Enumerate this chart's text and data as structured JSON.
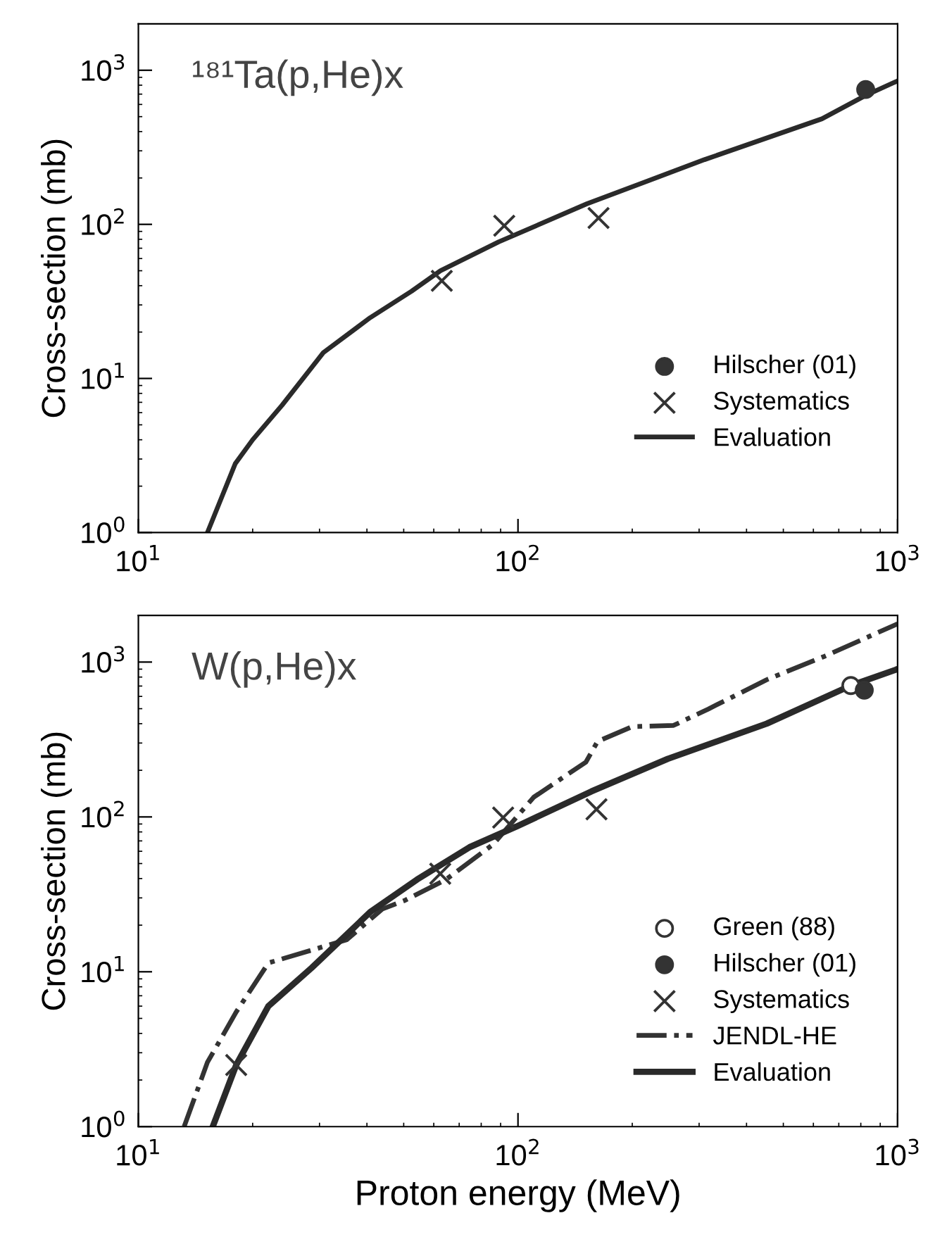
{
  "chart_data": [
    {
      "type": "line",
      "ylabel": "Cross-section (mb)",
      "annotations": [
        "¹⁸¹Ta(p,He)x"
      ],
      "log": "xy",
      "xlim": [
        10,
        1000
      ],
      "ylim": [
        1,
        2000
      ],
      "xticks": [
        {
          "value": 10,
          "label": "10$^{1}$"
        },
        {
          "value": 100,
          "label": "10$^{2}$"
        },
        {
          "value": 1000,
          "label": "10$^{3}$"
        }
      ],
      "yticks": [
        {
          "value": 1,
          "label": "10$^{0}$"
        },
        {
          "value": 10,
          "label": "10$^{1}$"
        },
        {
          "value": 100,
          "label": "10$^{2}$"
        },
        {
          "value": 1000,
          "label": "10$^{3}$"
        }
      ],
      "grid": false,
      "legend": "bottom right",
      "series": [
        {
          "name": "Hilscher (01)",
          "type": "scatter",
          "marker": "circle",
          "color": "#333333",
          "x": [
            824
          ],
          "values": [
            750
          ]
        },
        {
          "name": "Systematics",
          "type": "scatter",
          "marker": "cross",
          "color": "#333333",
          "x": [
            63,
            92,
            163
          ],
          "values": [
            43,
            98,
            110
          ]
        },
        {
          "name": "Evaluation",
          "line_style": "solid",
          "color": "#2a2a2a",
          "x": [
            15.2,
            18,
            20,
            23.9,
            30.7,
            40.8,
            52.4,
            62.5,
            89,
            152,
            310,
            632,
            824,
            1000
          ],
          "values": [
            1,
            2.8,
            4,
            6.7,
            14.7,
            24.8,
            36.8,
            50,
            77,
            136,
            263,
            484,
            687,
            853
          ]
        }
      ]
    },
    {
      "type": "line",
      "xlabel": "Proton energy (MeV)",
      "ylabel": "Cross-section (mb)",
      "annotations": [
        "W(p,He)x"
      ],
      "log": "xy",
      "xlim": [
        10,
        1000
      ],
      "ylim": [
        1,
        2000
      ],
      "xticks": [
        {
          "value": 10,
          "label": "10$^{1}$"
        },
        {
          "value": 100,
          "label": "10$^{2}$"
        },
        {
          "value": 1000,
          "label": "10$^{3}$"
        }
      ],
      "yticks": [
        {
          "value": 1,
          "label": "10$^{0}$"
        },
        {
          "value": 10,
          "label": "10$^{1}$"
        },
        {
          "value": 100,
          "label": "10$^{2}$"
        },
        {
          "value": 1000,
          "label": "10$^{3}$"
        }
      ],
      "grid": false,
      "legend": "bottom right",
      "series": [
        {
          "name": "Green (88)",
          "type": "scatter",
          "marker": "circle",
          "color": "#ffffff",
          "x": [
            753
          ],
          "values": [
            705
          ]
        },
        {
          "name": "Hilscher (01)",
          "type": "scatter",
          "marker": "circle",
          "color": "#333333",
          "x": [
            817
          ],
          "values": [
            658
          ]
        },
        {
          "name": "Systematics",
          "type": "scatter",
          "marker": "cross",
          "color": "#333333",
          "x": [
            18.1,
            62.4,
            91.4,
            161
          ],
          "values": [
            2.5,
            43,
            99,
            112
          ]
        },
        {
          "name": "JENDL-HE",
          "line_style": "dashdot",
          "color": "#333333",
          "x": [
            13.2,
            15.2,
            18.1,
            22,
            28.6,
            35.4,
            43.9,
            50.5,
            64.6,
            86,
            110,
            151,
            162,
            200,
            257,
            317,
            452,
            643,
            1000
          ],
          "values": [
            1,
            2.6,
            5.5,
            11.4,
            13.8,
            16.1,
            25.4,
            29,
            39.4,
            66.5,
            134,
            226,
            307,
            383,
            390,
            497,
            769,
            1091,
            1766
          ]
        },
        {
          "name": "Evaluation",
          "line_style": "solid",
          "color": "#2a2a2a",
          "x": [
            15.7,
            18.1,
            22,
            28.6,
            40.8,
            54.2,
            74.5,
            98.9,
            156,
            248,
            452,
            753,
            1000
          ],
          "values": [
            1,
            2.5,
            6,
            10.6,
            24.3,
            39.4,
            63.7,
            86.5,
            146,
            237,
            400,
            705,
            901
          ]
        }
      ]
    }
  ]
}
